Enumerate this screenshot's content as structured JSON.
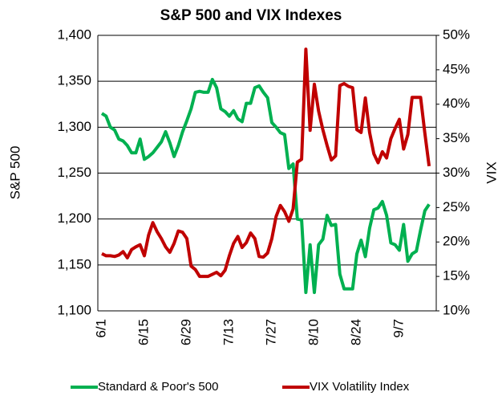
{
  "chart_data": {
    "type": "line",
    "title": "S&P 500 and VIX Indexes",
    "y_label": "S&P 500",
    "y2_label": "VIX",
    "categories": [
      "6/1",
      null,
      null,
      null,
      null,
      null,
      null,
      null,
      null,
      null,
      "6/15",
      null,
      null,
      null,
      null,
      null,
      null,
      null,
      null,
      null,
      "6/29",
      null,
      null,
      null,
      null,
      null,
      null,
      null,
      null,
      null,
      "7/13",
      null,
      null,
      null,
      null,
      null,
      null,
      null,
      null,
      null,
      "7/27",
      null,
      null,
      null,
      null,
      null,
      null,
      null,
      null,
      null,
      "8/10",
      null,
      null,
      null,
      null,
      null,
      null,
      null,
      null,
      null,
      "8/24",
      null,
      null,
      null,
      null,
      null,
      null,
      null,
      null,
      null,
      "9/7",
      null,
      null,
      null,
      null,
      null,
      null,
      null
    ],
    "series": [
      {
        "name": "Standard & Poor's 500",
        "color": "#00b050",
        "axis": "y",
        "values": [
          1315,
          1312,
          1300,
          1297,
          1287,
          1285,
          1280,
          1272,
          1272,
          1287,
          1265,
          1268,
          1272,
          1278,
          1284,
          1295,
          1283,
          1268,
          1280,
          1295,
          1307,
          1320,
          1338,
          1339,
          1338,
          1338,
          1352,
          1343,
          1320,
          1317,
          1312,
          1318,
          1309,
          1306,
          1326,
          1326,
          1343,
          1345,
          1338,
          1332,
          1305,
          1300,
          1294,
          1292,
          1255,
          1260,
          1200,
          1199,
          1120,
          1172,
          1120,
          1172,
          1178,
          1204,
          1193,
          1194,
          1140,
          1124,
          1124,
          1124,
          1162,
          1177,
          1159,
          1190,
          1210,
          1212,
          1219,
          1204,
          1174,
          1172,
          1166,
          1194,
          1154,
          1162,
          1165,
          1188,
          1209,
          1216
        ]
      },
      {
        "name": "VIX Volatility Index",
        "color": "#c00000",
        "axis": "y2",
        "values": [
          18.3,
          18.0,
          18.0,
          17.9,
          18.1,
          18.6,
          17.7,
          18.9,
          19.3,
          19.6,
          18.0,
          21.0,
          22.8,
          21.5,
          20.5,
          19.3,
          18.5,
          19.8,
          21.6,
          21.4,
          20.5,
          16.5,
          16.0,
          15.0,
          15.0,
          15.0,
          15.3,
          15.6,
          15.1,
          15.9,
          18.0,
          19.8,
          20.8,
          19.2,
          19.9,
          21.3,
          20.5,
          17.9,
          17.8,
          18.4,
          20.5,
          23.7,
          25.3,
          24.4,
          23.0,
          24.8,
          31.6,
          32.0,
          48.0,
          36.2,
          42.9,
          39.0,
          36.3,
          34.0,
          31.9,
          32.5,
          42.7,
          43.0,
          42.6,
          42.4,
          36.3,
          35.9,
          40.9,
          35.9,
          32.8,
          31.5,
          33.1,
          32.2,
          35.0,
          36.5,
          37.8,
          33.5,
          35.6,
          41.0,
          41.0,
          41.0,
          35.8,
          31.0
        ]
      }
    ],
    "ylim": [
      1100,
      1400
    ],
    "yticks": [
      {
        "value": 1100,
        "label": "1,100"
      },
      {
        "value": 1150,
        "label": "1,150"
      },
      {
        "value": 1200,
        "label": "1,200"
      },
      {
        "value": 1250,
        "label": "1,250"
      },
      {
        "value": 1300,
        "label": "1,300"
      },
      {
        "value": 1350,
        "label": "1,350"
      },
      {
        "value": 1400,
        "label": "1,400"
      }
    ],
    "y2lim": [
      10,
      50
    ],
    "y2ticks": [
      {
        "value": 10,
        "label": "10%"
      },
      {
        "value": 15,
        "label": "15%"
      },
      {
        "value": 20,
        "label": "20%"
      },
      {
        "value": 25,
        "label": "25%"
      },
      {
        "value": 30,
        "label": "30%"
      },
      {
        "value": 35,
        "label": "35%"
      },
      {
        "value": 40,
        "label": "40%"
      },
      {
        "value": 45,
        "label": "45%"
      },
      {
        "value": 50,
        "label": "50%"
      }
    ],
    "grid": true,
    "legend": "bottom"
  }
}
